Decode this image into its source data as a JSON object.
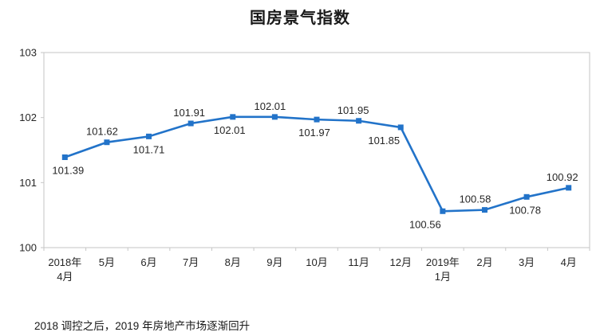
{
  "title": "国房景气指数",
  "caption": "2018 调控之后，2019 年房地产市场逐渐回升",
  "chart_data": {
    "type": "line",
    "title": "国房景气指数",
    "categories": [
      "2018年\n4月",
      "5月",
      "6月",
      "7月",
      "8月",
      "9月",
      "10月",
      "11月",
      "12月",
      "2019年\n1月",
      "2月",
      "3月",
      "4月"
    ],
    "values": [
      101.39,
      101.62,
      101.71,
      101.91,
      102.01,
      102.01,
      101.97,
      101.95,
      101.85,
      100.56,
      100.58,
      100.78,
      100.92
    ],
    "data_labels": [
      "101.39",
      "101.62",
      "101.71",
      "101.91",
      "102.01",
      "102.01",
      "101.97",
      "101.95",
      "101.85",
      "100.56",
      "100.58",
      "100.78",
      "100.92"
    ],
    "label_positions": [
      "below",
      "above",
      "below",
      "above",
      "below",
      "above",
      "below",
      "above",
      "below",
      "below",
      "above",
      "below",
      "above"
    ],
    "label_dx": [
      4,
      -6,
      0,
      -2,
      -4,
      -6,
      -3,
      -7,
      -21,
      -22,
      -12,
      -2,
      -8
    ],
    "xlabel": "",
    "ylabel": "",
    "ylim": [
      100,
      103
    ],
    "y_ticks": [
      100,
      101,
      102,
      103
    ],
    "grid": false,
    "legend": false,
    "marker": "square",
    "line_color": "#2273c9",
    "axis_color": "#c6c6c6",
    "text_color": "#262626",
    "background_color": "#ffffff"
  }
}
